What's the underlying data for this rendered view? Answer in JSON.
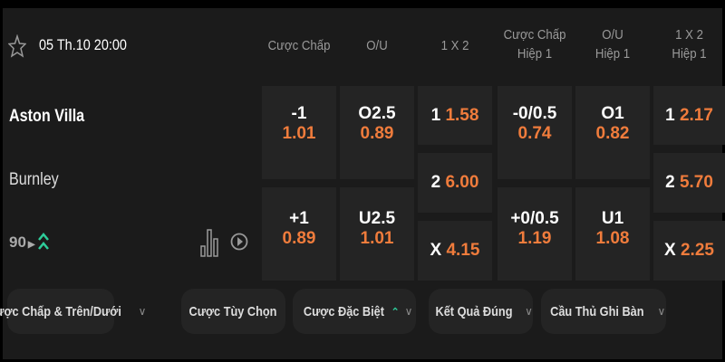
{
  "match": {
    "datetime": "05 Th.10 20:00",
    "home": "Aston Villa",
    "away": "Burnley",
    "count": "90",
    "icons": [
      "star-icon",
      "chevron-right-icon",
      "double-chevron-up-icon",
      "stats-icon",
      "play-icon"
    ]
  },
  "headers": [
    "Cược Chấp",
    "O/U",
    "1 X 2",
    "Cược Chấp",
    "Hiệp 1",
    "O/U",
    "Hiệp 1",
    "1 X 2",
    "Hiệp 1"
  ],
  "markets": {
    "hdp": [
      {
        "line": "-1",
        "odd": "1.01"
      },
      {
        "line": "+1",
        "odd": "0.89"
      }
    ],
    "ou": [
      {
        "line": "O2.5",
        "odd": "0.89"
      },
      {
        "line": "U2.5",
        "odd": "1.01"
      }
    ],
    "x12": [
      {
        "label": "1",
        "odd": "1.58"
      },
      {
        "label": "2",
        "odd": "6.00"
      },
      {
        "label": "X",
        "odd": "4.15"
      }
    ],
    "hdp_h1": [
      {
        "line": "-0/0.5",
        "odd": "0.74"
      },
      {
        "line": "+0/0.5",
        "odd": "1.19"
      }
    ],
    "ou_h1": [
      {
        "line": "O1",
        "odd": "0.82"
      },
      {
        "line": "U1",
        "odd": "1.08"
      }
    ],
    "x12_h1": [
      {
        "label": "1",
        "odd": "2.17"
      },
      {
        "label": "2",
        "odd": "5.70"
      },
      {
        "label": "X",
        "odd": "2.25"
      }
    ]
  },
  "tabs": [
    "Cược Chấp & Trên/Dưới",
    "Cược Tùy Chọn",
    "Cược Đặc Biệt",
    "Kết Quả Đúng",
    "Cầu Thủ Ghi Bàn"
  ],
  "colors": {
    "odds": "#f07c3c",
    "accent": "#2ecc9a",
    "background": "#1b1b1b",
    "cell": "#242424"
  }
}
